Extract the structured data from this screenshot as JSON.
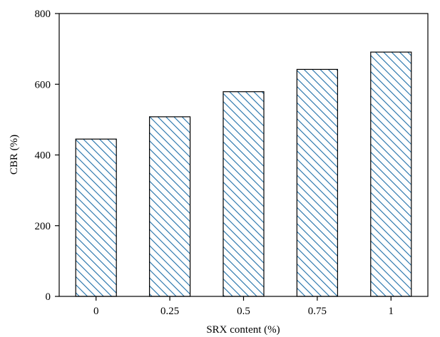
{
  "chart_data": {
    "type": "bar",
    "categories": [
      "0",
      "0.25",
      "0.5",
      "0.75",
      "1"
    ],
    "values": [
      445,
      508,
      579,
      642,
      691
    ],
    "title": "",
    "xlabel": "SRX content (%)",
    "ylabel": "CBR (%)",
    "ylim": [
      0,
      800
    ],
    "yticks": [
      0,
      200,
      400,
      600,
      800
    ],
    "grid": false,
    "legend": "none",
    "bar_fill": "hatched",
    "hatch_color": "#1f6fa8",
    "bar_edge_color": "#000000",
    "axis_color": "#000000",
    "background_color": "#ffffff"
  }
}
